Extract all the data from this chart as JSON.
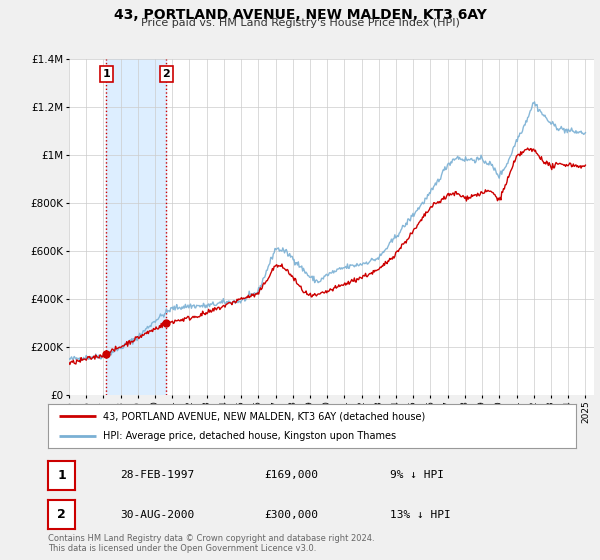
{
  "title": "43, PORTLAND AVENUE, NEW MALDEN, KT3 6AY",
  "subtitle": "Price paid vs. HM Land Registry's House Price Index (HPI)",
  "bg_color": "#f0f0f0",
  "plot_bg_color": "#ffffff",
  "grid_color": "#cccccc",
  "xmin": 1995.0,
  "xmax": 2025.5,
  "ymin": 0,
  "ymax": 1400000,
  "yticks": [
    0,
    200000,
    400000,
    600000,
    800000,
    1000000,
    1200000,
    1400000
  ],
  "ytick_labels": [
    "£0",
    "£200K",
    "£400K",
    "£600K",
    "£800K",
    "£1M",
    "£1.2M",
    "£1.4M"
  ],
  "xticks": [
    1995,
    1996,
    1997,
    1998,
    1999,
    2000,
    2001,
    2002,
    2003,
    2004,
    2005,
    2006,
    2007,
    2008,
    2009,
    2010,
    2011,
    2012,
    2013,
    2014,
    2015,
    2016,
    2017,
    2018,
    2019,
    2020,
    2021,
    2022,
    2023,
    2024,
    2025
  ],
  "sale1_x": 1997.163,
  "sale1_y": 169000,
  "sale2_x": 2000.663,
  "sale2_y": 300000,
  "sale_color": "#cc0000",
  "hpi_color": "#7ab0d4",
  "legend_sale_label": "43, PORTLAND AVENUE, NEW MALDEN, KT3 6AY (detached house)",
  "legend_hpi_label": "HPI: Average price, detached house, Kingston upon Thames",
  "table_row1": [
    "1",
    "28-FEB-1997",
    "£169,000",
    "9% ↓ HPI"
  ],
  "table_row2": [
    "2",
    "30-AUG-2000",
    "£300,000",
    "13% ↓ HPI"
  ],
  "footer": "Contains HM Land Registry data © Crown copyright and database right 2024.\nThis data is licensed under the Open Government Licence v3.0.",
  "shaded_region_color": "#ddeeff",
  "dashed_line_color": "#cc0000",
  "label_box_color": "#cc0000"
}
